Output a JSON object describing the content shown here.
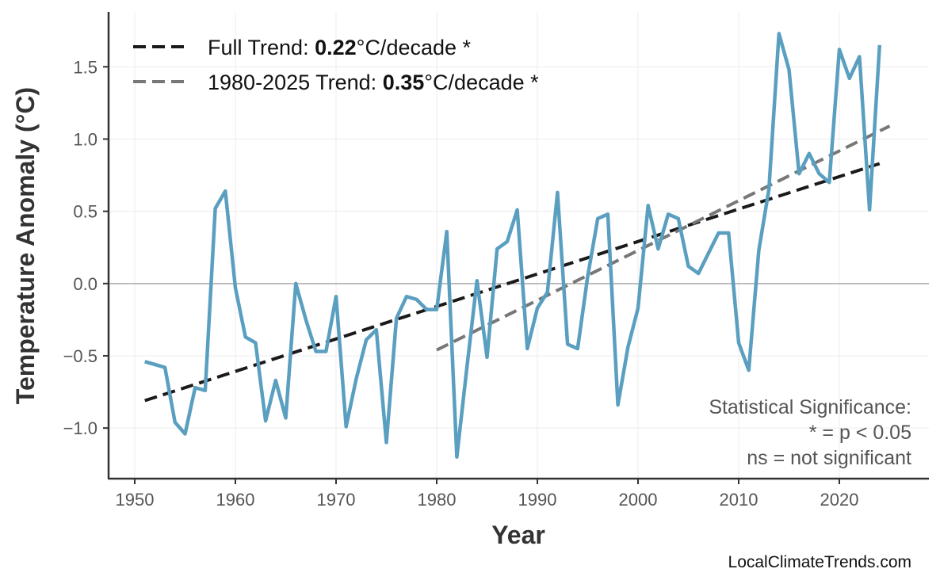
{
  "chart_data": {
    "type": "line",
    "title": "",
    "xlabel": "Year",
    "ylabel": "Temperature Anomaly (°C)",
    "xlim": [
      1947.4,
      2028.9
    ],
    "ylim": [
      -1.35,
      1.88
    ],
    "grid": true,
    "x_ticks": [
      1950,
      1960,
      1970,
      1980,
      1990,
      2000,
      2010,
      2020
    ],
    "y_ticks": [
      -1.0,
      -0.5,
      0.0,
      0.5,
      1.0,
      1.5
    ],
    "y_tick_labels": [
      "−1.0",
      "−0.5",
      "0.0",
      "0.5",
      "1.0",
      "1.5"
    ],
    "colors": {
      "series": "#5a9fc0",
      "full_trend": "#1a1a1a",
      "recent_trend": "#777777",
      "zero_line": "#aaaaaa"
    },
    "series": [
      {
        "x": [
          1951,
          1952,
          1953,
          1954,
          1955,
          1956,
          1957,
          1958,
          1959,
          1960,
          1961,
          1962,
          1963,
          1964,
          1965,
          1966,
          1967,
          1968,
          1969,
          1970,
          1971,
          1972,
          1973,
          1974,
          1975,
          1976,
          1977,
          1978,
          1979,
          1980,
          1981,
          1982,
          1983,
          1984,
          1985,
          1986,
          1987,
          1988,
          1989,
          1990,
          1991,
          1992,
          1993,
          1994,
          1995,
          1996,
          1997,
          1998,
          1999,
          2000,
          2001,
          2002,
          2003,
          2004,
          2005,
          2006,
          2007,
          2008,
          2009,
          2010,
          2011,
          2012,
          2013,
          2014,
          2015,
          2016,
          2017,
          2018,
          2019,
          2020,
          2021,
          2022,
          2023,
          2024
        ],
        "y": [
          -0.54,
          -0.56,
          -0.58,
          -0.96,
          -1.04,
          -0.72,
          -0.74,
          0.52,
          0.64,
          -0.03,
          -0.37,
          -0.41,
          -0.95,
          -0.67,
          -0.93,
          0.0,
          -0.25,
          -0.47,
          -0.47,
          -0.09,
          -0.99,
          -0.66,
          -0.39,
          -0.32,
          -1.1,
          -0.24,
          -0.09,
          -0.11,
          -0.18,
          -0.18,
          0.36,
          -1.2,
          -0.58,
          0.02,
          -0.51,
          0.24,
          0.29,
          0.51,
          -0.45,
          -0.17,
          -0.06,
          0.63,
          -0.42,
          -0.45,
          0.05,
          0.45,
          0.48,
          -0.84,
          -0.44,
          -0.17,
          0.54,
          0.24,
          0.48,
          0.45,
          0.12,
          0.07,
          0.21,
          0.35,
          0.35,
          -0.41,
          -0.6,
          0.23,
          0.65,
          1.73,
          1.48,
          0.76,
          0.9,
          0.76,
          0.7,
          1.62,
          1.42,
          1.57,
          0.51,
          1.65
        ]
      }
    ],
    "trends": [
      {
        "name": "Full Trend",
        "x": [
          1951,
          2024
        ],
        "y": [
          -0.81,
          0.83
        ],
        "rate": "0.22",
        "unit": "°C/decade",
        "sig": " *",
        "style": "dashed"
      },
      {
        "name": "1980-2025 Trend",
        "x": [
          1980,
          2025
        ],
        "y": [
          -0.46,
          1.09
        ],
        "rate": "0.35",
        "unit": "°C/decade",
        "sig": " *",
        "style": "dashed"
      }
    ],
    "legend_position": "top-left",
    "annotation": [
      "Statistical Significance:",
      "* = p < 0.05",
      "ns = not significant"
    ]
  },
  "watermark": "LocalClimateTrends.com"
}
